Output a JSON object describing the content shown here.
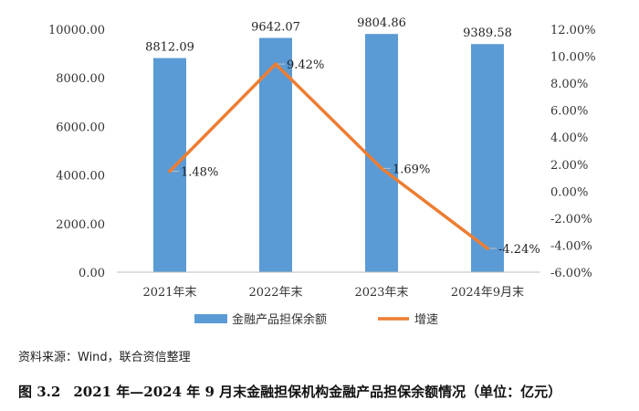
{
  "chart_data": {
    "type": "bar",
    "categories": [
      "2021年末",
      "2022年末",
      "2023年末",
      "2024年9月末"
    ],
    "series": [
      {
        "name": "金融产品担保余额",
        "type": "bar",
        "axis": "left",
        "color": "#5b9bd5",
        "values": [
          8812.09,
          9642.07,
          9804.86,
          9389.58
        ],
        "labels": [
          "8812.09",
          "9642.07",
          "9804.86",
          "9389.58"
        ]
      },
      {
        "name": "增速",
        "type": "line",
        "axis": "right",
        "color": "#ed7d31",
        "values": [
          1.48,
          9.42,
          1.69,
          -4.24
        ],
        "labels": [
          "1.48%",
          "9.42%",
          "1.69%",
          "-4.24%"
        ]
      }
    ],
    "y_left": {
      "lim": [
        0,
        10000
      ],
      "ticks": [
        0,
        2000,
        4000,
        6000,
        8000,
        10000
      ],
      "tick_labels": [
        "0.00",
        "2000.00",
        "4000.00",
        "6000.00",
        "8000.00",
        "10000.00"
      ]
    },
    "y_right": {
      "lim": [
        -6,
        12
      ],
      "ticks": [
        -6,
        -4,
        -2,
        0,
        2,
        4,
        6,
        8,
        10,
        12
      ],
      "tick_labels": [
        "-6.00%",
        "-4.00%",
        "-2.00%",
        "0.00%",
        "2.00%",
        "4.00%",
        "6.00%",
        "8.00%",
        "10.00%",
        "12.00%"
      ]
    },
    "grid": false,
    "legend_position": "bottom"
  },
  "source": "资料来源：Wind，联合资信整理",
  "caption": {
    "figure_no": "图 3.2",
    "text": "2021 年—2024 年 9 月末金融担保机构金融产品担保余额情况（单位：亿元）"
  }
}
